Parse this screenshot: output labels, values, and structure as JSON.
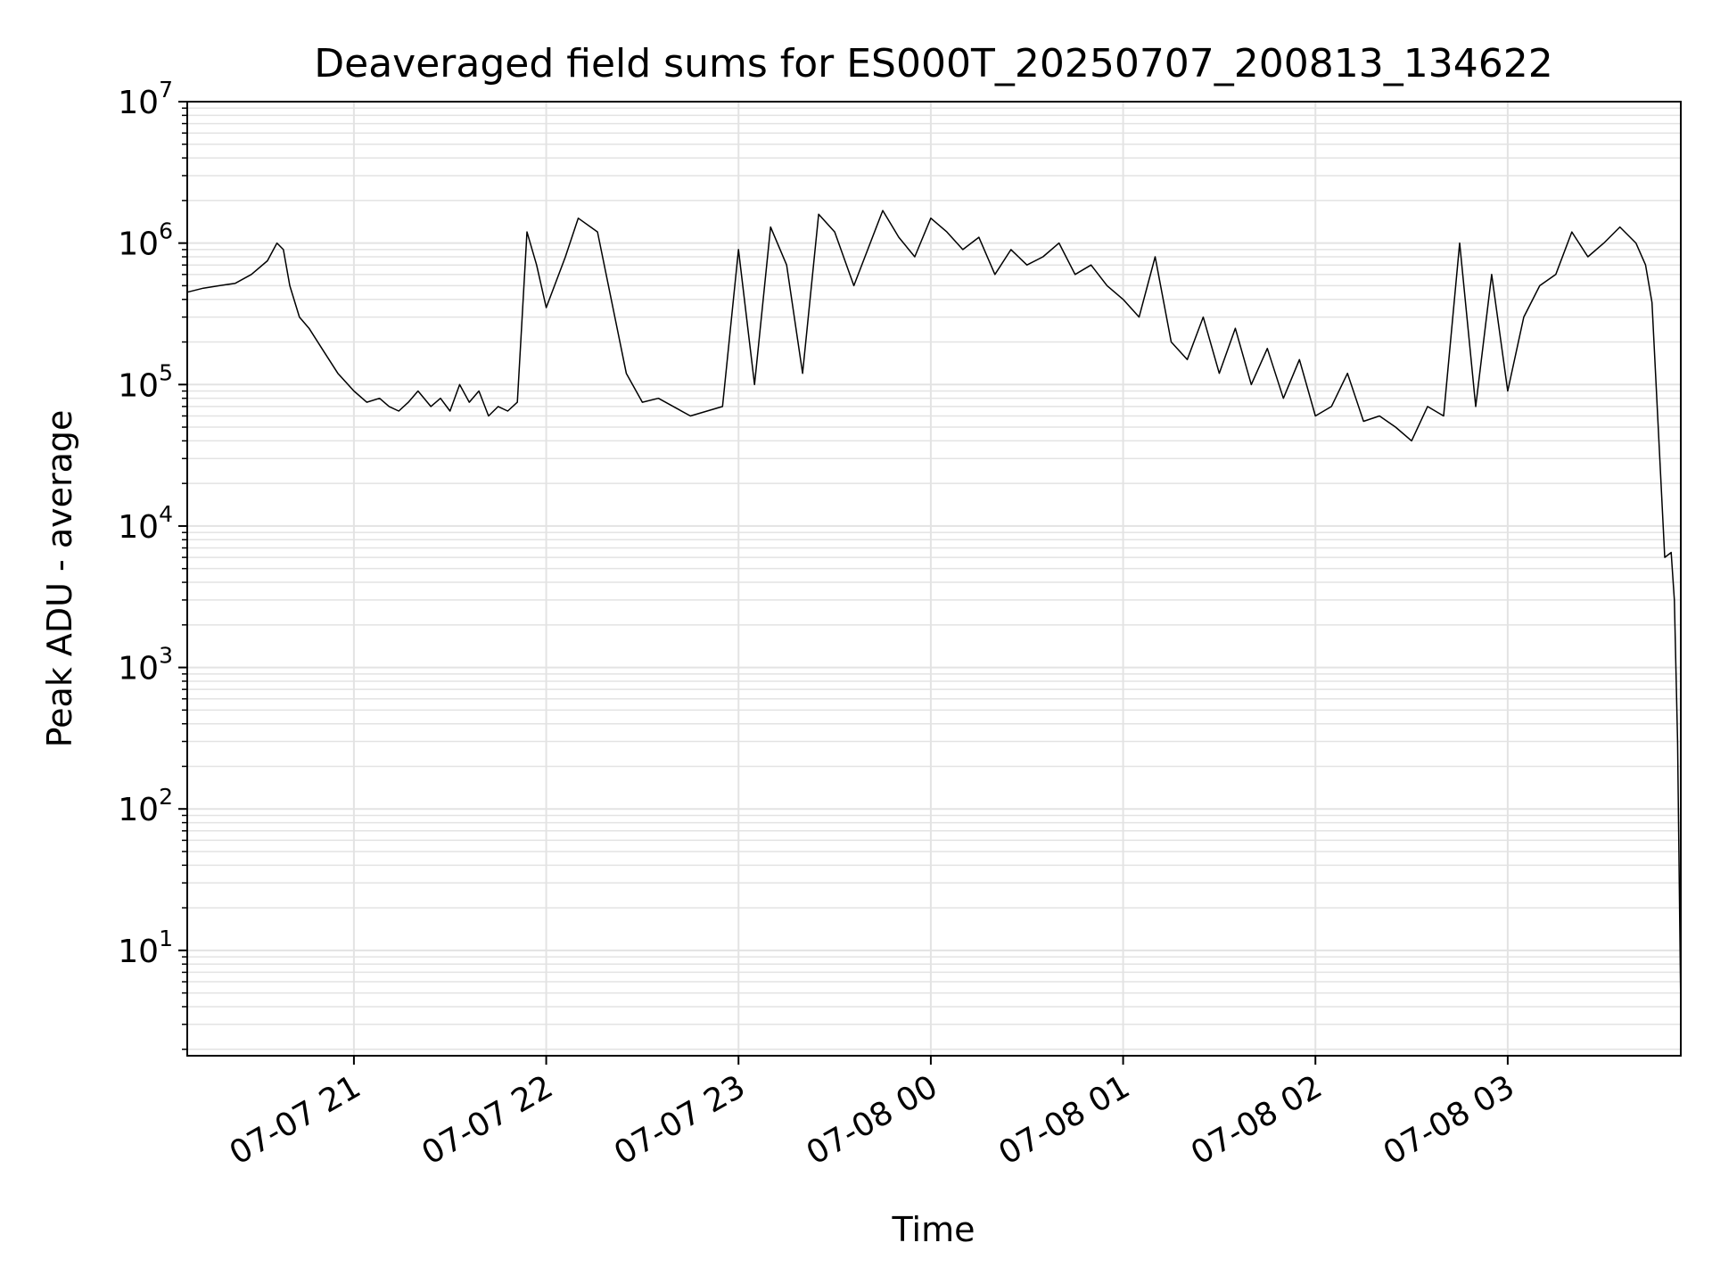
{
  "chart_data": {
    "type": "line",
    "title": "Deaveraged field sums for ES000T_20250707_200813_134622",
    "xlabel": "Time",
    "ylabel": "Peak ADU - average",
    "y_scale": "log",
    "ylim": [
      1.8,
      10000000
    ],
    "xlim": [
      "2025-07-07 20:08",
      "2025-07-08 03:54"
    ],
    "grid": true,
    "line_color": "#000000",
    "grid_color": "#e3e3e3",
    "x_ticks": [
      {
        "value": "2025-07-07 21:00",
        "label": "07-07 21"
      },
      {
        "value": "2025-07-07 22:00",
        "label": "07-07 22"
      },
      {
        "value": "2025-07-07 23:00",
        "label": "07-07 23"
      },
      {
        "value": "2025-07-08 00:00",
        "label": "07-08 00"
      },
      {
        "value": "2025-07-08 01:00",
        "label": "07-08 01"
      },
      {
        "value": "2025-07-08 02:00",
        "label": "07-08 02"
      },
      {
        "value": "2025-07-08 03:00",
        "label": "07-08 03"
      }
    ],
    "y_ticks": [
      {
        "value": 10,
        "base": "10",
        "exp": "1"
      },
      {
        "value": 100,
        "base": "10",
        "exp": "2"
      },
      {
        "value": 1000,
        "base": "10",
        "exp": "3"
      },
      {
        "value": 10000,
        "base": "10",
        "exp": "4"
      },
      {
        "value": 100000,
        "base": "10",
        "exp": "5"
      },
      {
        "value": 1000000,
        "base": "10",
        "exp": "6"
      },
      {
        "value": 10000000,
        "base": "10",
        "exp": "7"
      }
    ],
    "series": [
      {
        "x": [
          "2025-07-07 20:08",
          "2025-07-07 20:13",
          "2025-07-07 20:18",
          "2025-07-07 20:23",
          "2025-07-07 20:28",
          "2025-07-07 20:33",
          "2025-07-07 20:36",
          "2025-07-07 20:38",
          "2025-07-07 20:40",
          "2025-07-07 20:43",
          "2025-07-07 20:46",
          "2025-07-07 20:50",
          "2025-07-07 20:55",
          "2025-07-07 21:00",
          "2025-07-07 21:04",
          "2025-07-07 21:08",
          "2025-07-07 21:11",
          "2025-07-07 21:14",
          "2025-07-07 21:17",
          "2025-07-07 21:20",
          "2025-07-07 21:24",
          "2025-07-07 21:27",
          "2025-07-07 21:30",
          "2025-07-07 21:33",
          "2025-07-07 21:36",
          "2025-07-07 21:39",
          "2025-07-07 21:42",
          "2025-07-07 21:45",
          "2025-07-07 21:48",
          "2025-07-07 21:51",
          "2025-07-07 21:54",
          "2025-07-07 21:57",
          "2025-07-07 22:00",
          "2025-07-07 22:06",
          "2025-07-07 22:10",
          "2025-07-07 22:16",
          "2025-07-07 22:25",
          "2025-07-07 22:30",
          "2025-07-07 22:35",
          "2025-07-07 22:45",
          "2025-07-07 22:55",
          "2025-07-07 23:00",
          "2025-07-07 23:05",
          "2025-07-07 23:10",
          "2025-07-07 23:15",
          "2025-07-07 23:20",
          "2025-07-07 23:25",
          "2025-07-07 23:30",
          "2025-07-07 23:36",
          "2025-07-07 23:45",
          "2025-07-07 23:50",
          "2025-07-07 23:55",
          "2025-07-08 00:00",
          "2025-07-08 00:05",
          "2025-07-08 00:10",
          "2025-07-08 00:15",
          "2025-07-08 00:20",
          "2025-07-08 00:25",
          "2025-07-08 00:30",
          "2025-07-08 00:35",
          "2025-07-08 00:40",
          "2025-07-08 00:45",
          "2025-07-08 00:50",
          "2025-07-08 00:55",
          "2025-07-08 01:00",
          "2025-07-08 01:05",
          "2025-07-08 01:10",
          "2025-07-08 01:15",
          "2025-07-08 01:20",
          "2025-07-08 01:25",
          "2025-07-08 01:30",
          "2025-07-08 01:35",
          "2025-07-08 01:40",
          "2025-07-08 01:45",
          "2025-07-08 01:50",
          "2025-07-08 01:55",
          "2025-07-08 02:00",
          "2025-07-08 02:05",
          "2025-07-08 02:10",
          "2025-07-08 02:15",
          "2025-07-08 02:20",
          "2025-07-08 02:25",
          "2025-07-08 02:30",
          "2025-07-08 02:35",
          "2025-07-08 02:40",
          "2025-07-08 02:45",
          "2025-07-08 02:50",
          "2025-07-08 02:55",
          "2025-07-08 03:00",
          "2025-07-08 03:05",
          "2025-07-08 03:10",
          "2025-07-08 03:15",
          "2025-07-08 03:20",
          "2025-07-08 03:25",
          "2025-07-08 03:30",
          "2025-07-08 03:35",
          "2025-07-08 03:40",
          "2025-07-08 03:43",
          "2025-07-08 03:45",
          "2025-07-08 03:49",
          "2025-07-08 03:51",
          "2025-07-08 03:52",
          "2025-07-08 03:53",
          "2025-07-08 03:54"
        ],
        "y": [
          450000,
          480000,
          500000,
          520000,
          600000,
          750000,
          1000000,
          900000,
          500000,
          300000,
          250000,
          180000,
          120000,
          90000,
          75000,
          80000,
          70000,
          65000,
          75000,
          90000,
          70000,
          80000,
          65000,
          100000,
          75000,
          90000,
          60000,
          70000,
          65000,
          75000,
          1200000,
          700000,
          350000,
          800000,
          1500000,
          1200000,
          120000,
          75000,
          80000,
          60000,
          70000,
          900000,
          100000,
          1300000,
          700000,
          120000,
          1600000,
          1200000,
          500000,
          1700000,
          1100000,
          800000,
          1500000,
          1200000,
          900000,
          1100000,
          600000,
          900000,
          700000,
          800000,
          1000000,
          600000,
          700000,
          500000,
          400000,
          300000,
          800000,
          200000,
          150000,
          300000,
          120000,
          250000,
          100000,
          180000,
          80000,
          150000,
          60000,
          70000,
          120000,
          55000,
          60000,
          50000,
          40000,
          70000,
          60000,
          1000000,
          70000,
          600000,
          90000,
          300000,
          500000,
          600000,
          1200000,
          800000,
          1000000,
          1300000,
          1000000,
          700000,
          380000,
          6000,
          6500,
          3000,
          300,
          3.8
        ]
      }
    ]
  }
}
